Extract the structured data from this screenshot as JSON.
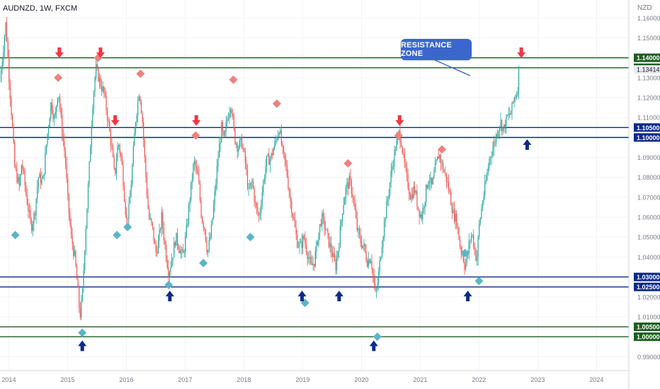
{
  "header": {
    "title": "AUDNZD, 1W, FXCM",
    "unit": "NZD"
  },
  "callout": {
    "label": "RESISTANCE ZONE"
  },
  "colors": {
    "bull": "#26a69a",
    "bear": "#ef5350",
    "green_line": "#1b5e20",
    "blue_line": "#0d2a8a",
    "arrow_down": "#f23645",
    "arrow_up": "#0d2a8a",
    "diamond_red": "#f08080",
    "diamond_blue": "#5bb5c8",
    "callout": "#3b66cc"
  },
  "chart_data": {
    "type": "candlestick",
    "title": "AUDNZD, 1W, FXCM",
    "ylabel": "NZD",
    "xlabel": "",
    "x_range": [
      2013.85,
      2024.55
    ],
    "y_range": [
      0.983,
      1.169
    ],
    "x_ticks": [
      "2014",
      "2015",
      "2016",
      "2017",
      "2018",
      "2019",
      "2020",
      "2021",
      "2022",
      "2023",
      "2024"
    ],
    "y_ticks": [
      "0.99000",
      "1.00000",
      "1.01000",
      "1.02000",
      "1.03000",
      "1.04000",
      "1.05000",
      "1.06000",
      "1.07000",
      "1.08000",
      "1.09000",
      "1.10000",
      "1.11000",
      "1.12000",
      "1.13000",
      "1.14000",
      "1.15000",
      "1.16000"
    ],
    "current_price": "1.13414",
    "zones": [
      {
        "name": "RESISTANCE ZONE",
        "color": "green",
        "upper": "1.14000",
        "lower": "1.13500"
      },
      {
        "color": "blue",
        "upper": "1.10500",
        "lower": "1.10000"
      },
      {
        "color": "blue",
        "upper": "1.03000",
        "lower": "1.02500"
      },
      {
        "color": "green",
        "upper": "1.00500",
        "lower": "1.00000"
      }
    ],
    "close_path": [
      [
        2013.85,
        1.128
      ],
      [
        2013.95,
        1.158
      ],
      [
        2014.0,
        1.132
      ],
      [
        2014.06,
        1.105
      ],
      [
        2014.1,
        1.085
      ],
      [
        2014.18,
        1.075
      ],
      [
        2014.22,
        1.088
      ],
      [
        2014.3,
        1.07
      ],
      [
        2014.38,
        1.055
      ],
      [
        2014.44,
        1.062
      ],
      [
        2014.5,
        1.08
      ],
      [
        2014.58,
        1.078
      ],
      [
        2014.65,
        1.1
      ],
      [
        2014.72,
        1.118
      ],
      [
        2014.78,
        1.108
      ],
      [
        2014.84,
        1.125
      ],
      [
        2014.9,
        1.105
      ],
      [
        2014.96,
        1.09
      ],
      [
        2015.0,
        1.07
      ],
      [
        2015.06,
        1.05
      ],
      [
        2015.12,
        1.04
      ],
      [
        2015.17,
        1.025
      ],
      [
        2015.21,
        1.01
      ],
      [
        2015.25,
        1.02
      ],
      [
        2015.3,
        1.05
      ],
      [
        2015.36,
        1.08
      ],
      [
        2015.42,
        1.115
      ],
      [
        2015.48,
        1.135
      ],
      [
        2015.55,
        1.128
      ],
      [
        2015.62,
        1.122
      ],
      [
        2015.68,
        1.11
      ],
      [
        2015.75,
        1.095
      ],
      [
        2015.8,
        1.08
      ],
      [
        2015.86,
        1.098
      ],
      [
        2015.92,
        1.088
      ],
      [
        2016.0,
        1.058
      ],
      [
        2016.05,
        1.065
      ],
      [
        2016.1,
        1.085
      ],
      [
        2016.16,
        1.11
      ],
      [
        2016.22,
        1.124
      ],
      [
        2016.27,
        1.11
      ],
      [
        2016.32,
        1.085
      ],
      [
        2016.38,
        1.06
      ],
      [
        2016.44,
        1.055
      ],
      [
        2016.5,
        1.042
      ],
      [
        2016.55,
        1.048
      ],
      [
        2016.6,
        1.06
      ],
      [
        2016.66,
        1.045
      ],
      [
        2016.72,
        1.032
      ],
      [
        2016.78,
        1.04
      ],
      [
        2016.84,
        1.05
      ],
      [
        2016.9,
        1.045
      ],
      [
        2016.96,
        1.04
      ],
      [
        2017.02,
        1.052
      ],
      [
        2017.08,
        1.07
      ],
      [
        2017.15,
        1.088
      ],
      [
        2017.22,
        1.08
      ],
      [
        2017.28,
        1.06
      ],
      [
        2017.33,
        1.055
      ],
      [
        2017.38,
        1.042
      ],
      [
        2017.44,
        1.052
      ],
      [
        2017.5,
        1.07
      ],
      [
        2017.56,
        1.09
      ],
      [
        2017.62,
        1.105
      ],
      [
        2017.66,
        1.098
      ],
      [
        2017.72,
        1.11
      ],
      [
        2017.78,
        1.118
      ],
      [
        2017.84,
        1.1
      ],
      [
        2017.9,
        1.095
      ],
      [
        2017.96,
        1.098
      ],
      [
        2018.02,
        1.088
      ],
      [
        2018.08,
        1.072
      ],
      [
        2018.14,
        1.078
      ],
      [
        2018.2,
        1.065
      ],
      [
        2018.26,
        1.06
      ],
      [
        2018.32,
        1.075
      ],
      [
        2018.38,
        1.088
      ],
      [
        2018.46,
        1.09
      ],
      [
        2018.54,
        1.098
      ],
      [
        2018.6,
        1.105
      ],
      [
        2018.66,
        1.092
      ],
      [
        2018.72,
        1.085
      ],
      [
        2018.78,
        1.07
      ],
      [
        2018.84,
        1.06
      ],
      [
        2018.9,
        1.048
      ],
      [
        2018.96,
        1.045
      ],
      [
        2019.02,
        1.05
      ],
      [
        2019.08,
        1.042
      ],
      [
        2019.14,
        1.035
      ],
      [
        2019.2,
        1.038
      ],
      [
        2019.26,
        1.05
      ],
      [
        2019.32,
        1.06
      ],
      [
        2019.38,
        1.055
      ],
      [
        2019.44,
        1.048
      ],
      [
        2019.5,
        1.042
      ],
      [
        2019.56,
        1.035
      ],
      [
        2019.62,
        1.048
      ],
      [
        2019.68,
        1.065
      ],
      [
        2019.74,
        1.075
      ],
      [
        2019.8,
        1.078
      ],
      [
        2019.86,
        1.07
      ],
      [
        2019.92,
        1.055
      ],
      [
        2019.98,
        1.048
      ],
      [
        2020.04,
        1.045
      ],
      [
        2020.1,
        1.038
      ],
      [
        2020.16,
        1.04
      ],
      [
        2020.2,
        1.03
      ],
      [
        2020.24,
        1.02
      ],
      [
        2020.28,
        1.028
      ],
      [
        2020.34,
        1.045
      ],
      [
        2020.4,
        1.06
      ],
      [
        2020.46,
        1.072
      ],
      [
        2020.52,
        1.085
      ],
      [
        2020.58,
        1.095
      ],
      [
        2020.64,
        1.102
      ],
      [
        2020.68,
        1.098
      ],
      [
        2020.72,
        1.088
      ],
      [
        2020.78,
        1.078
      ],
      [
        2020.84,
        1.07
      ],
      [
        2020.9,
        1.075
      ],
      [
        2020.96,
        1.065
      ],
      [
        2021.02,
        1.06
      ],
      [
        2021.08,
        1.07
      ],
      [
        2021.14,
        1.08
      ],
      [
        2021.2,
        1.075
      ],
      [
        2021.26,
        1.085
      ],
      [
        2021.32,
        1.092
      ],
      [
        2021.38,
        1.085
      ],
      [
        2021.44,
        1.08
      ],
      [
        2021.5,
        1.072
      ],
      [
        2021.56,
        1.062
      ],
      [
        2021.62,
        1.058
      ],
      [
        2021.68,
        1.045
      ],
      [
        2021.72,
        1.042
      ],
      [
        2021.76,
        1.035
      ],
      [
        2021.8,
        1.04
      ],
      [
        2021.84,
        1.048
      ],
      [
        2021.88,
        1.052
      ],
      [
        2021.92,
        1.045
      ],
      [
        2021.96,
        1.038
      ],
      [
        2022.0,
        1.055
      ],
      [
        2022.06,
        1.068
      ],
      [
        2022.12,
        1.078
      ],
      [
        2022.18,
        1.09
      ],
      [
        2022.24,
        1.095
      ],
      [
        2022.3,
        1.102
      ],
      [
        2022.36,
        1.108
      ],
      [
        2022.42,
        1.104
      ],
      [
        2022.48,
        1.11
      ],
      [
        2022.54,
        1.112
      ],
      [
        2022.6,
        1.12
      ],
      [
        2022.65,
        1.123
      ],
      [
        2022.68,
        1.134
      ]
    ],
    "annotations": {
      "down_arrows": [
        [
          2014.86,
          1.142
        ],
        [
          2015.56,
          1.142
        ],
        [
          2015.81,
          1.108
        ],
        [
          2017.19,
          1.108
        ],
        [
          2020.65,
          1.108
        ],
        [
          2022.72,
          1.142
        ]
      ],
      "up_arrows": [
        [
          2015.25,
          0.996
        ],
        [
          2016.74,
          1.021
        ],
        [
          2018.99,
          1.021
        ],
        [
          2019.62,
          1.021
        ],
        [
          2020.21,
          0.996
        ],
        [
          2021.81,
          1.021
        ],
        [
          2022.82,
          1.097
        ]
      ],
      "red_diamonds": [
        [
          2014.84,
          1.13
        ],
        [
          2015.52,
          1.14
        ],
        [
          2016.24,
          1.132
        ],
        [
          2017.18,
          1.101
        ],
        [
          2017.82,
          1.129
        ],
        [
          2018.56,
          1.117
        ],
        [
          2019.77,
          1.087
        ],
        [
          2020.63,
          1.101
        ],
        [
          2021.37,
          1.094
        ]
      ],
      "blue_diamonds": [
        [
          2014.11,
          1.051
        ],
        [
          2015.25,
          1.002
        ],
        [
          2015.84,
          1.051
        ],
        [
          2016.02,
          1.055
        ],
        [
          2016.72,
          1.026
        ],
        [
          2017.31,
          1.037
        ],
        [
          2018.11,
          1.05
        ],
        [
          2019.04,
          1.017
        ],
        [
          2020.27,
          1.0
        ],
        [
          2021.76,
          1.042
        ],
        [
          2022.0,
          1.028
        ]
      ]
    }
  }
}
